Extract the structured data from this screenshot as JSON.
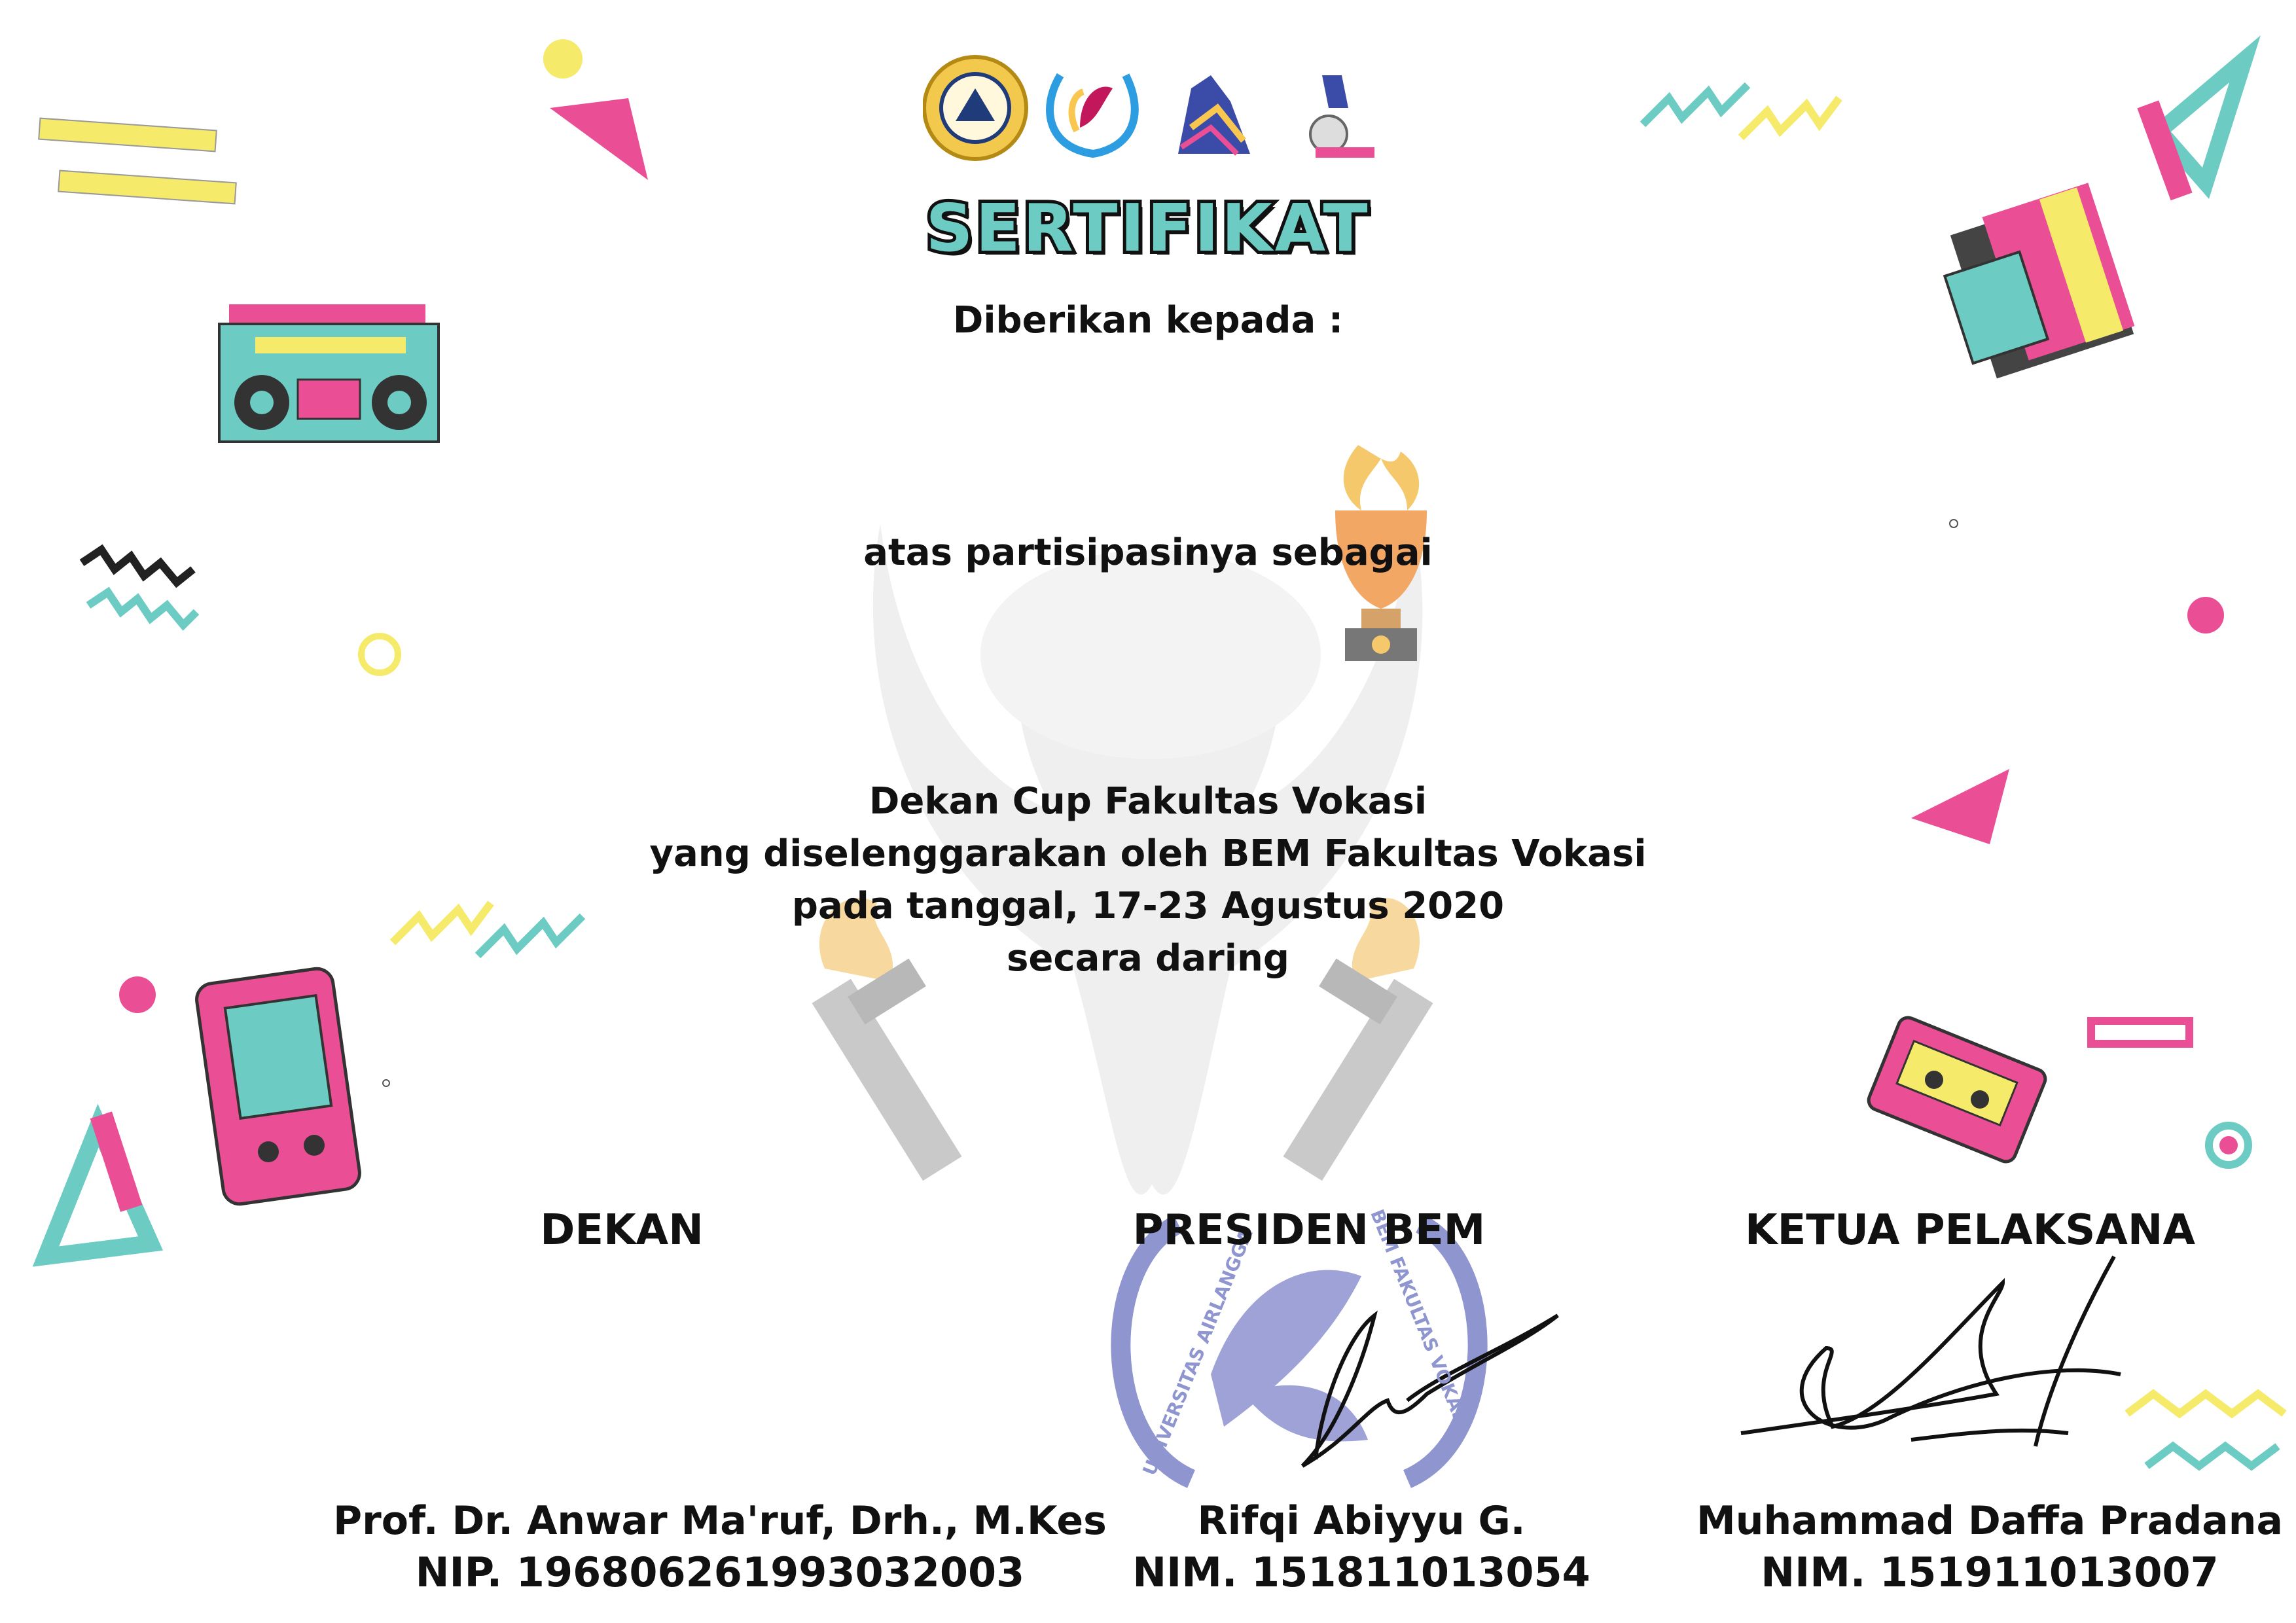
{
  "certificate": {
    "title": "SERTIFIKAT",
    "given_to": "Diberikan kepada :",
    "participation": "atas partisipasinya sebagai",
    "event_lines": [
      "Dekan Cup Fakultas Vokasi",
      "yang diselenggarakan oleh BEM Fakultas Vokasi",
      "pada tanggal, 17-23 Agustus 2020",
      "secara daring"
    ]
  },
  "signatories": [
    {
      "role": "DEKAN",
      "name": "Prof. Dr. Anwar Ma'ruf, Drh., M.Kes",
      "id": "NIP. 196806261993032003"
    },
    {
      "role": "PRESIDEN BEM",
      "name": "Rifqi Abiyyu G.",
      "id": "NIM. 151811013054"
    },
    {
      "role": "KETUA PELAKSANA",
      "name": "Muhammad Daffa Pradana",
      "id": "NIM. 151911013007"
    }
  ],
  "stamp_text": {
    "left_arc": "UNIVERSITAS AIRLANGGA",
    "right_arc": "BEM FAKULTAS VOKASI"
  },
  "icons": [
    "university-seal-logo",
    "vokasi-logo",
    "wolf-mascot-logo",
    "dekan-cup-logo",
    "boombox-icon",
    "film-roll-icon",
    "game-console-icon",
    "cassette-icon",
    "trophy-icon",
    "torch-icon"
  ],
  "colors": {
    "pink": "#ea4f95",
    "teal": "#6ccbc3",
    "yellow": "#f5ea6a",
    "gray": "#e6e6e6",
    "stamp": "#7f86c6",
    "text": "#111111"
  }
}
